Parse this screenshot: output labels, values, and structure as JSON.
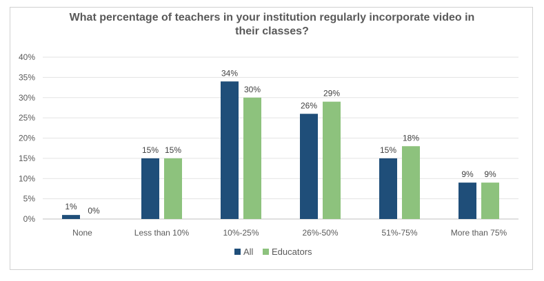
{
  "chart_data": {
    "type": "bar",
    "title_line1": "What percentage of teachers in your institution regularly incorporate video in",
    "title_line2": "their classes?",
    "categories": [
      "None",
      "Less than 10%",
      "10%-25%",
      "26%-50%",
      "51%-75%",
      "More than 75%"
    ],
    "series": [
      {
        "name": "All",
        "values": [
          1,
          15,
          34,
          26,
          15,
          9
        ],
        "labels": [
          "1%",
          "15%",
          "34%",
          "26%",
          "15%",
          "9%"
        ],
        "color": "#1f4e79"
      },
      {
        "name": "Educators",
        "values": [
          0,
          15,
          30,
          29,
          18,
          9
        ],
        "labels": [
          "0%",
          "15%",
          "30%",
          "29%",
          "18%",
          "9%"
        ],
        "color": "#8dc27d"
      }
    ],
    "y_ticks": [
      "0%",
      "5%",
      "10%",
      "15%",
      "20%",
      "25%",
      "30%",
      "35%",
      "40%"
    ],
    "ylim": [
      0,
      40
    ],
    "grid": true,
    "legend": "bottom"
  }
}
